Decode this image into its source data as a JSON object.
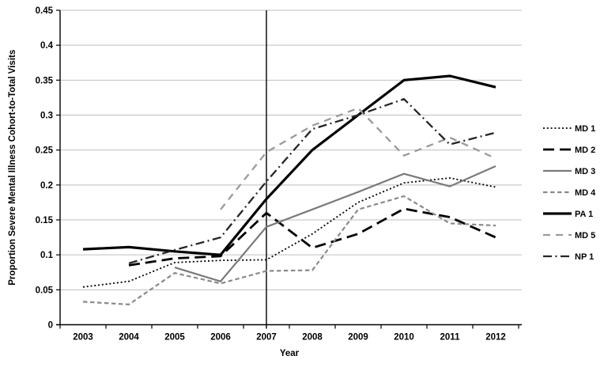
{
  "chart_data": {
    "type": "line",
    "title": "",
    "xlabel": "Year",
    "ylabel": "Proportion Severe Mental Illness Cohort-to-Total Visits",
    "x": [
      2003,
      2004,
      2005,
      2006,
      2007,
      2008,
      2009,
      2010,
      2011,
      2012
    ],
    "ylim": [
      0,
      0.45
    ],
    "yticks": [
      0,
      0.05,
      0.1,
      0.15,
      0.2,
      0.25,
      0.3,
      0.35,
      0.4,
      0.45
    ],
    "ytick_labels": [
      "0",
      "0.05",
      "0.1",
      "0.15",
      "0.2",
      "0.25",
      "0.3",
      "0.35",
      "0.4",
      "0.45"
    ],
    "xtick_labels": [
      "2003",
      "2004",
      "2005",
      "2006",
      "2007",
      "2008",
      "2009",
      "2010",
      "2011",
      "2012"
    ],
    "grid": "horizontal",
    "grid_color": "#bfbfbf",
    "axis_color": "#000000",
    "background_color": "#ffffff",
    "legend_position": "right",
    "annotations": [
      {
        "type": "vline",
        "x": 2007,
        "color": "#000000"
      }
    ],
    "series": [
      {
        "name": "MD 1",
        "style": "dotted",
        "color": "#000000",
        "values": [
          0.054,
          0.062,
          0.089,
          0.092,
          0.093,
          0.13,
          0.175,
          0.203,
          0.21,
          0.197
        ]
      },
      {
        "name": "MD 2",
        "style": "long-dash",
        "color": "#000000",
        "values": [
          null,
          0.085,
          0.095,
          0.098,
          0.16,
          0.11,
          0.13,
          0.166,
          0.154,
          0.125
        ]
      },
      {
        "name": "MD 3",
        "style": "solid",
        "color": "#7a7a7a",
        "values": [
          null,
          null,
          0.082,
          0.062,
          0.14,
          0.165,
          0.19,
          0.216,
          0.198,
          0.227
        ]
      },
      {
        "name": "MD 4",
        "style": "short-dash",
        "color": "#8a8a8a",
        "values": [
          0.033,
          0.029,
          0.074,
          0.059,
          0.077,
          0.078,
          0.165,
          0.184,
          0.145,
          0.142
        ]
      },
      {
        "name": "PA 1",
        "style": "solid-thick",
        "color": "#000000",
        "values": [
          0.108,
          0.111,
          0.105,
          0.1,
          0.18,
          0.25,
          0.3,
          0.35,
          0.356,
          0.34
        ]
      },
      {
        "name": "MD 5",
        "style": "med-dash",
        "color": "#9a9a9a",
        "values": [
          null,
          null,
          null,
          0.165,
          0.247,
          0.285,
          0.31,
          0.242,
          0.268,
          0.238
        ]
      },
      {
        "name": "NP 1",
        "style": "dash-dot",
        "color": "#262626",
        "values": [
          null,
          0.088,
          0.107,
          0.125,
          0.205,
          0.28,
          0.3,
          0.323,
          0.258,
          0.275
        ]
      }
    ]
  }
}
